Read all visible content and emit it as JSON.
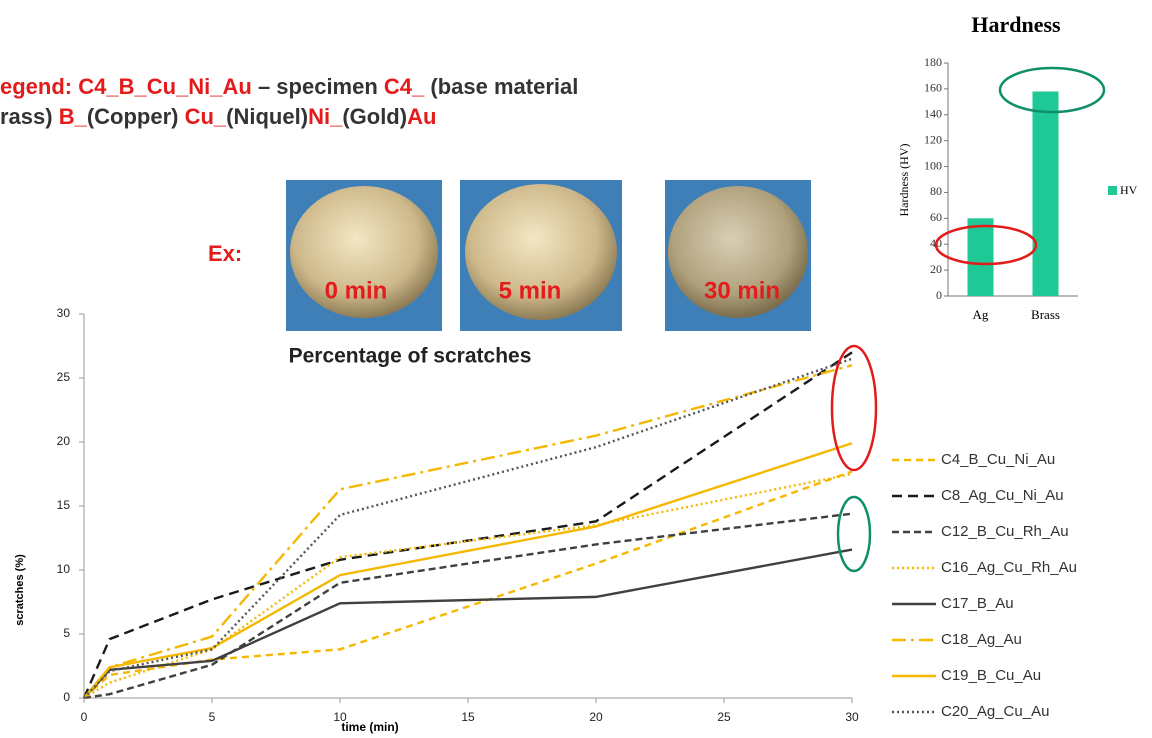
{
  "slide": {
    "legend_lines": [
      [
        {
          "text": "egend: C4_B_Cu_Ni_Au",
          "color": "#e31b1b"
        },
        {
          "text": " – specimen ",
          "color": "#333333"
        },
        {
          "text": "C4_",
          "color": "#e31b1b"
        },
        {
          "text": " (base material",
          "color": "#333333"
        }
      ],
      [
        {
          "text": "rass) ",
          "color": "#333333"
        },
        {
          "text": "B_",
          "color": "#e31b1b"
        },
        {
          "text": "(Copper) ",
          "color": "#333333"
        },
        {
          "text": "Cu_",
          "color": "#e31b1b"
        },
        {
          "text": "(Niquel)",
          "color": "#333333"
        },
        {
          "text": "Ni_",
          "color": "#e31b1b"
        },
        {
          "text": "(Gold)",
          "color": "#333333"
        },
        {
          "text": "Au",
          "color": "#e31b1b"
        }
      ]
    ],
    "example_label": "Ex:",
    "photos": [
      {
        "label": "0 min"
      },
      {
        "label": "5 min"
      },
      {
        "label": "30 min"
      }
    ]
  },
  "chart_data": [
    {
      "type": "line",
      "title": "Percentage of scratches",
      "x_label": "time (min)",
      "y_label": "scratches (%)",
      "x": [
        0,
        1,
        5,
        10,
        20,
        30
      ],
      "xlim": [
        0,
        30
      ],
      "xticks": [
        0,
        5,
        10,
        15,
        20,
        25,
        30
      ],
      "ylim": [
        0,
        30
      ],
      "yticks": [
        0,
        5,
        10,
        15,
        20,
        25,
        30
      ],
      "series": [
        {
          "name": "C4_B_Cu_Ni_Au",
          "color": "#f5b800",
          "dash": "7,5",
          "values": [
            0,
            1.8,
            3,
            3.8,
            10.5,
            17.7
          ]
        },
        {
          "name": "C8_Ag_Cu_Ni_Au",
          "color": "#1a1a1a",
          "dash": "10,6",
          "values": [
            0,
            4.6,
            7.7,
            10.8,
            13.8,
            27
          ]
        },
        {
          "name": "C12_B_Cu_Rh_Au",
          "color": "#404040",
          "dash": "7,4",
          "values": [
            0,
            0.3,
            2.6,
            9,
            12,
            14.4
          ]
        },
        {
          "name": "C16_Ag_Cu_Rh_Au",
          "color": "#f5b800",
          "dash": "2,3",
          "values": [
            0,
            1.2,
            3.8,
            11,
            13.5,
            17.5
          ]
        },
        {
          "name": "C17_B_Au",
          "color": "#404040",
          "dash": "none",
          "values": [
            0,
            2.2,
            2.9,
            7.4,
            7.9,
            11.6
          ]
        },
        {
          "name": "C18_Ag_Au",
          "color": "#f5b800",
          "dash": "14,5,3,5",
          "values": [
            0,
            2.4,
            4.8,
            16.3,
            20.5,
            26
          ]
        },
        {
          "name": "C19_B_Cu_Au",
          "color": "#f5b800",
          "dash": "none",
          "values": [
            0,
            2.4,
            3.9,
            9.6,
            13.4,
            19.9
          ]
        },
        {
          "name": "C20_Ag_Cu_Au",
          "color": "#555555",
          "dash": "2,3",
          "values": [
            0,
            2.1,
            3.8,
            14.3,
            19.6,
            26.5
          ]
        }
      ]
    },
    {
      "type": "bar",
      "title": "Hardness",
      "y_label": "Hardness (HV)",
      "categories": [
        "Ag",
        "Brass"
      ],
      "series": [
        {
          "name": "HV",
          "color": "#1ec995",
          "values": [
            60,
            158
          ]
        }
      ],
      "ylim": [
        0,
        180
      ],
      "yticks": [
        0,
        20,
        40,
        60,
        80,
        100,
        120,
        140,
        160,
        180
      ]
    }
  ]
}
